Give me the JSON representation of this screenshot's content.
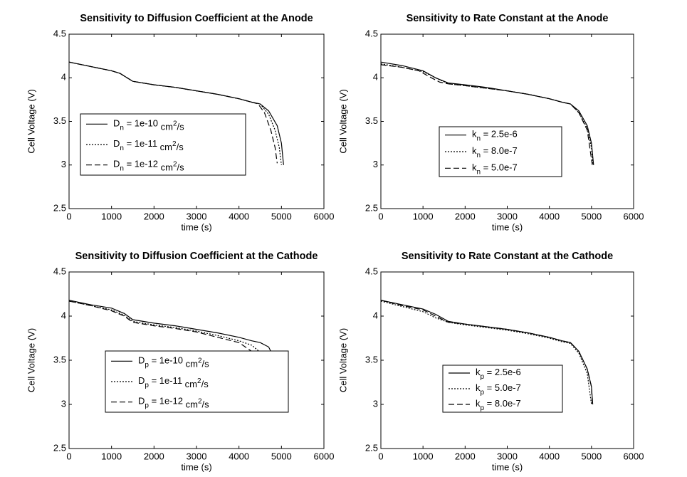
{
  "chart_data": [
    {
      "type": "line",
      "title": "Sensitivity to Diffusion Coefficient at the Anode",
      "x_label": "time (s)",
      "y_label": "Cell Voltage (V)",
      "xlim": [
        0,
        6000
      ],
      "xticks": [
        0,
        1000,
        2000,
        3000,
        4000,
        5000,
        6000
      ],
      "ylim": [
        2.5,
        4.5
      ],
      "yticks": [
        2.5,
        3,
        3.5,
        4,
        4.5
      ],
      "series": [
        {
          "name": "Dn = 1e-10 cm2/s",
          "color": "#000000",
          "dash": "solid",
          "x": [
            0,
            500,
            1000,
            1200,
            1500,
            2000,
            2500,
            3000,
            3500,
            4000,
            4300,
            4500,
            4700,
            4900,
            5000,
            5050
          ],
          "values": [
            4.18,
            4.13,
            4.08,
            4.05,
            3.96,
            3.92,
            3.89,
            3.85,
            3.81,
            3.76,
            3.72,
            3.7,
            3.62,
            3.45,
            3.25,
            3.0
          ]
        },
        {
          "name": "Dn = 1e-11 cm2/s",
          "color": "#000000",
          "dash": "dotted",
          "x": [
            0,
            500,
            1000,
            1200,
            1500,
            2000,
            2500,
            3000,
            3500,
            4000,
            4300,
            4500,
            4700,
            4850,
            4950,
            5000
          ],
          "values": [
            4.18,
            4.13,
            4.08,
            4.05,
            3.96,
            3.92,
            3.89,
            3.85,
            3.81,
            3.76,
            3.72,
            3.7,
            3.58,
            3.4,
            3.2,
            3.0
          ]
        },
        {
          "name": "Dn = 1e-12 cm2/s",
          "color": "#000000",
          "dash": "dashed",
          "x": [
            0,
            500,
            1000,
            1200,
            1500,
            2000,
            2500,
            3000,
            3500,
            4000,
            4300,
            4450,
            4600,
            4750,
            4850,
            4900
          ],
          "values": [
            4.18,
            4.13,
            4.08,
            4.05,
            3.96,
            3.92,
            3.89,
            3.85,
            3.81,
            3.76,
            3.72,
            3.7,
            3.6,
            3.4,
            3.2,
            3.02
          ]
        }
      ]
    },
    {
      "type": "line",
      "title": "Sensitivity to Rate Constant at the Anode",
      "x_label": "time (s)",
      "y_label": "Cell Voltage (V)",
      "xlim": [
        0,
        6000
      ],
      "xticks": [
        0,
        1000,
        2000,
        3000,
        4000,
        5000,
        6000
      ],
      "ylim": [
        2.5,
        4.5
      ],
      "yticks": [
        2.5,
        3,
        3.5,
        4,
        4.5
      ],
      "series": [
        {
          "name": "kn = 2.5e-6",
          "color": "#000000",
          "dash": "solid",
          "x": [
            0,
            500,
            1000,
            1300,
            1600,
            2000,
            2500,
            3000,
            3500,
            4000,
            4300,
            4500,
            4700,
            4900,
            5000,
            5050
          ],
          "values": [
            4.18,
            4.14,
            4.08,
            4.0,
            3.94,
            3.92,
            3.89,
            3.85,
            3.81,
            3.76,
            3.72,
            3.7,
            3.62,
            3.45,
            3.25,
            3.0
          ]
        },
        {
          "name": "kn = 8.0e-7",
          "color": "#000000",
          "dash": "dotted",
          "x": [
            0,
            500,
            1000,
            1300,
            1600,
            2000,
            2500,
            3000,
            3500,
            4000,
            4300,
            4500,
            4700,
            4900,
            5000,
            5030
          ],
          "values": [
            4.16,
            4.12,
            4.07,
            4.0,
            3.93,
            3.91,
            3.88,
            3.85,
            3.81,
            3.76,
            3.72,
            3.7,
            3.6,
            3.42,
            3.2,
            3.0
          ]
        },
        {
          "name": "kn = 5.0e-7",
          "color": "#000000",
          "dash": "dashed",
          "x": [
            0,
            500,
            900,
            1200,
            1400,
            1600,
            2000,
            2500,
            3000,
            3500,
            4000,
            4300,
            4500,
            4700,
            4900,
            5020
          ],
          "values": [
            4.15,
            4.12,
            4.08,
            4.0,
            3.95,
            3.93,
            3.91,
            3.88,
            3.85,
            3.81,
            3.76,
            3.72,
            3.7,
            3.6,
            3.4,
            3.0
          ]
        }
      ]
    },
    {
      "type": "line",
      "title": "Sensitivity to Diffusion Coefficient at the Cathode",
      "x_label": "time (s)",
      "y_label": "Cell Voltage (V)",
      "xlim": [
        0,
        6000
      ],
      "xticks": [
        0,
        1000,
        2000,
        3000,
        4000,
        5000,
        6000
      ],
      "ylim": [
        2.5,
        4.5
      ],
      "yticks": [
        2.5,
        3,
        3.5,
        4,
        4.5
      ],
      "series": [
        {
          "name": "Dp = 1e-10 cm2/s",
          "color": "#000000",
          "dash": "solid",
          "x": [
            0,
            500,
            1000,
            1300,
            1500,
            2000,
            2500,
            3000,
            3500,
            4000,
            4300,
            4500,
            4700,
            4900,
            5000,
            5050
          ],
          "values": [
            4.18,
            4.13,
            4.09,
            4.03,
            3.96,
            3.92,
            3.89,
            3.85,
            3.81,
            3.76,
            3.72,
            3.7,
            3.65,
            3.45,
            3.25,
            3.0
          ]
        },
        {
          "name": "Dp = 1e-11 cm2/s",
          "color": "#000000",
          "dash": "dotted",
          "x": [
            0,
            500,
            1000,
            1300,
            1500,
            2000,
            2500,
            3000,
            3500,
            4000,
            4300,
            4600,
            4800,
            4900
          ],
          "values": [
            4.17,
            4.12,
            4.07,
            4.01,
            3.94,
            3.9,
            3.87,
            3.83,
            3.78,
            3.72,
            3.67,
            3.55,
            3.35,
            3.05
          ]
        },
        {
          "name": "Dp = 1e-12 cm2/s",
          "color": "#000000",
          "dash": "dashed",
          "x": [
            0,
            500,
            1000,
            1300,
            1500,
            2000,
            2500,
            3000,
            3500,
            4000,
            4300,
            4500,
            4650,
            4700
          ],
          "values": [
            4.17,
            4.12,
            4.06,
            4.0,
            3.93,
            3.89,
            3.86,
            3.82,
            3.76,
            3.7,
            3.6,
            3.45,
            3.2,
            3.0
          ]
        }
      ]
    },
    {
      "type": "line",
      "title": "Sensitivity to Rate Constant at the Cathode",
      "x_label": "time (s)",
      "y_label": "Cell Voltage (V)",
      "xlim": [
        0,
        6000
      ],
      "xticks": [
        0,
        1000,
        2000,
        3000,
        4000,
        5000,
        6000
      ],
      "ylim": [
        2.5,
        4.5
      ],
      "yticks": [
        2.5,
        3,
        3.5,
        4,
        4.5
      ],
      "series": [
        {
          "name": "kp = 2.5e-6",
          "color": "#000000",
          "dash": "solid",
          "x": [
            0,
            500,
            1000,
            1300,
            1600,
            2000,
            2500,
            3000,
            3500,
            4000,
            4300,
            4500,
            4700,
            4900,
            5000,
            5030
          ],
          "values": [
            4.18,
            4.13,
            4.08,
            4.02,
            3.94,
            3.91,
            3.88,
            3.85,
            3.81,
            3.76,
            3.72,
            3.7,
            3.6,
            3.4,
            3.2,
            3.0
          ]
        },
        {
          "name": "kp = 5.0e-7",
          "color": "#000000",
          "dash": "dotted",
          "x": [
            0,
            500,
            1000,
            1300,
            1600,
            2000,
            2500,
            3000,
            3500,
            4000,
            4300,
            4500,
            4700,
            4900,
            5000
          ],
          "values": [
            4.17,
            4.11,
            4.05,
            3.98,
            3.93,
            3.9,
            3.87,
            3.84,
            3.8,
            3.75,
            3.71,
            3.69,
            3.58,
            3.35,
            3.0
          ]
        },
        {
          "name": "kp = 8.0e-7",
          "color": "#000000",
          "dash": "dashed",
          "x": [
            0,
            500,
            1000,
            1300,
            1600,
            2000,
            2500,
            3000,
            3500,
            4000,
            4300,
            4500,
            4700,
            4900,
            5000,
            5020
          ],
          "values": [
            4.18,
            4.12,
            4.07,
            4.0,
            3.93,
            3.91,
            3.88,
            3.85,
            3.81,
            3.76,
            3.72,
            3.7,
            3.6,
            3.4,
            3.2,
            3.0
          ]
        }
      ]
    }
  ]
}
